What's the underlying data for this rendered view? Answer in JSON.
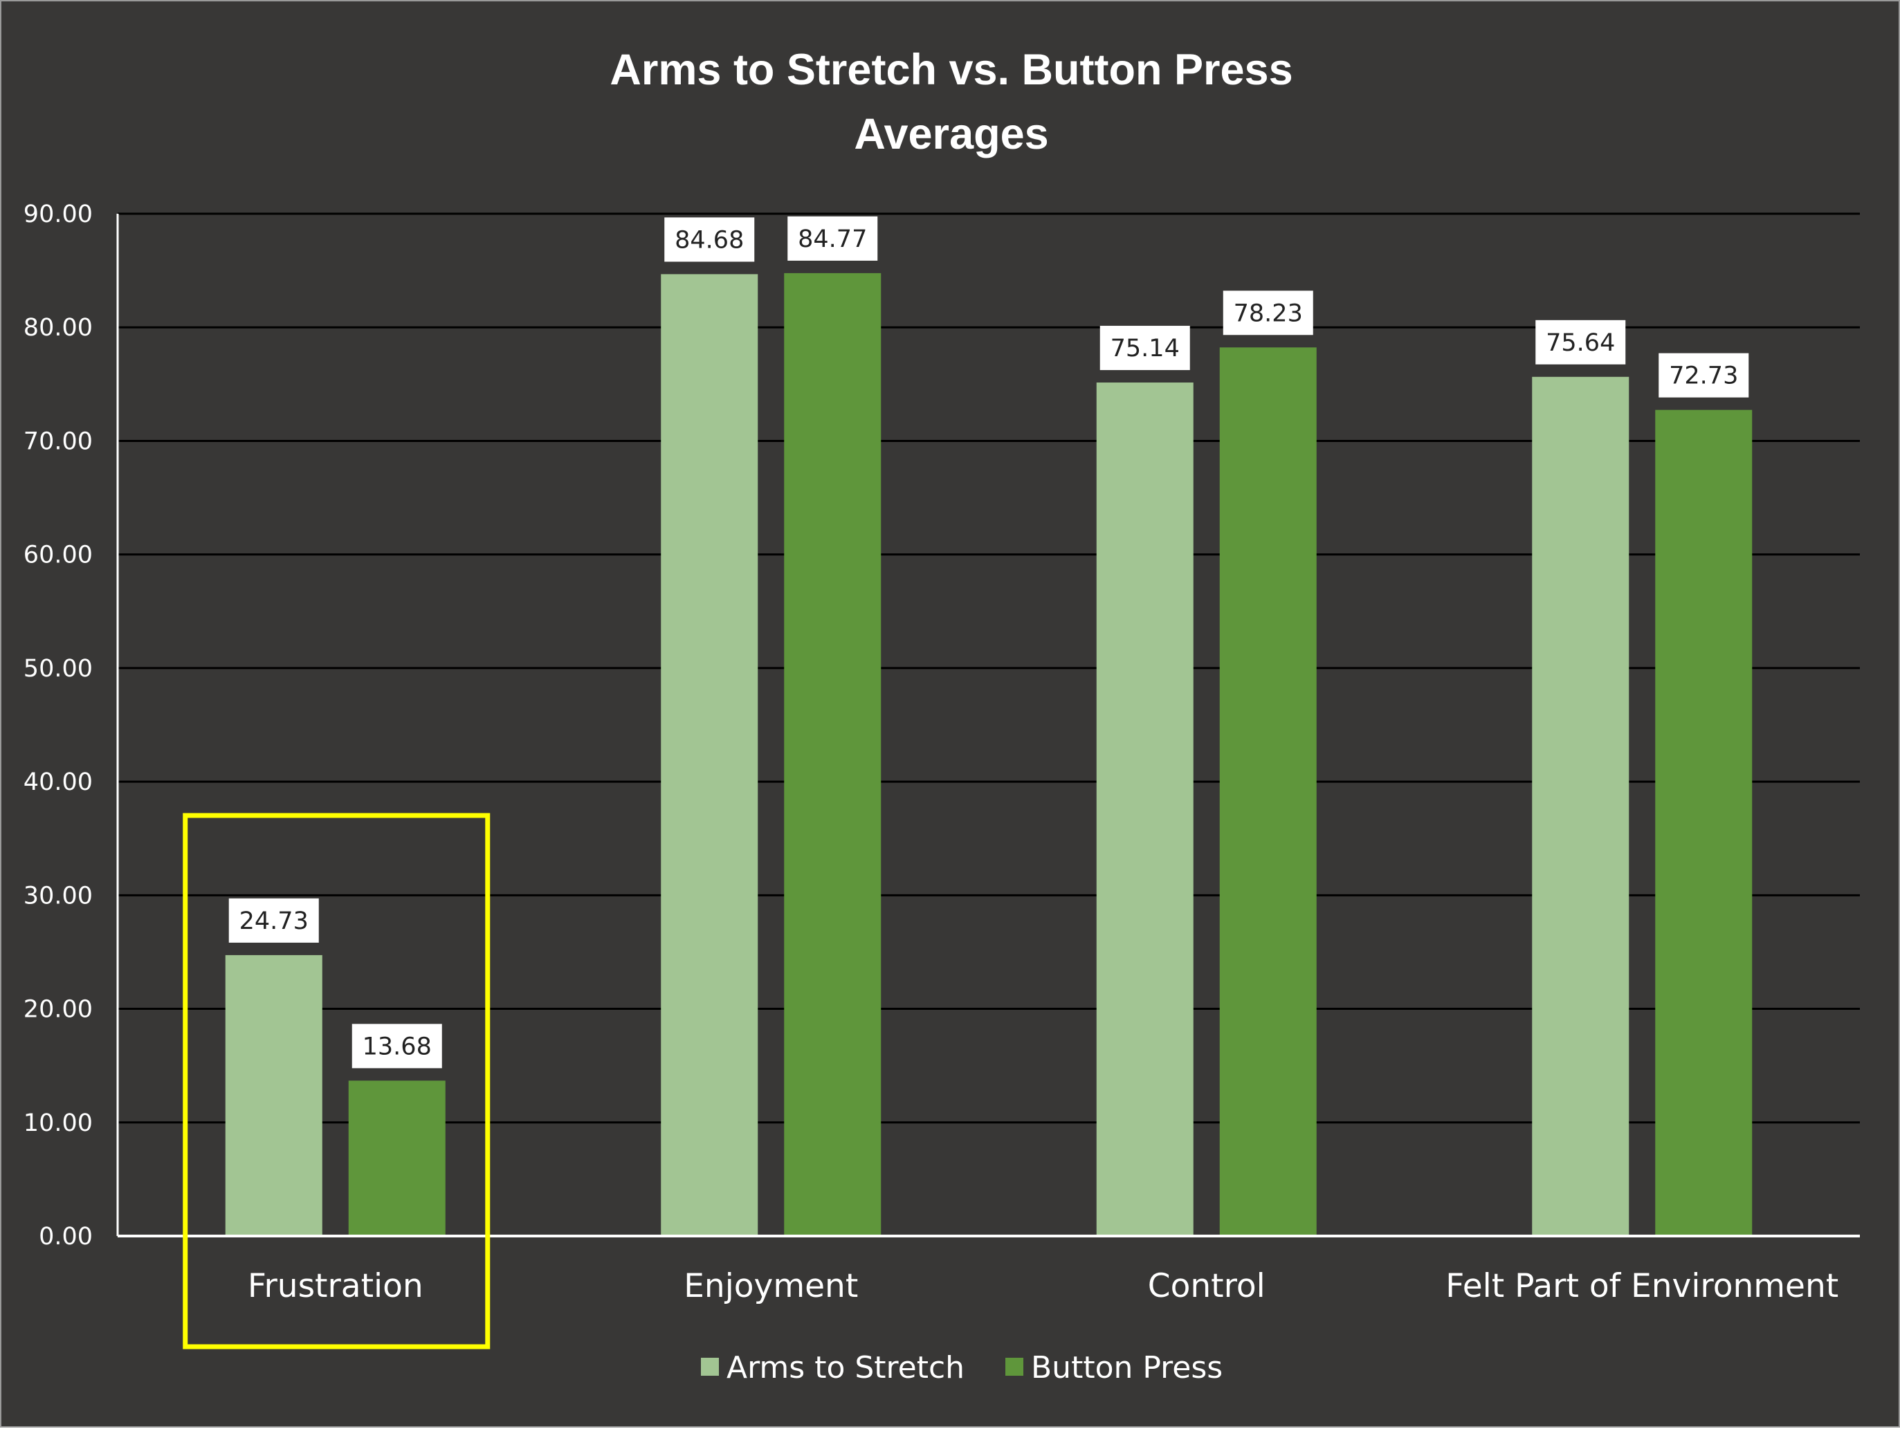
{
  "chart_data": {
    "type": "bar",
    "title_lines": [
      "Arms to Stretch vs. Button Press",
      "Averages"
    ],
    "categories": [
      "Frustration",
      "Enjoyment",
      "Control",
      "Felt Part of Environment"
    ],
    "series": [
      {
        "name": "Arms to Stretch",
        "values": [
          24.73,
          84.68,
          75.14,
          75.64
        ],
        "labels": [
          "24.73",
          "84.68",
          "75.14",
          "75.64"
        ],
        "color": "#a2c593"
      },
      {
        "name": "Button Press",
        "values": [
          13.68,
          84.77,
          78.23,
          72.73
        ],
        "labels": [
          "13.68",
          "84.77",
          "78.23",
          "72.73"
        ],
        "color": "#5f963b"
      }
    ],
    "ylim": [
      0,
      90
    ],
    "yticks": [
      "0.00",
      "10.00",
      "20.00",
      "30.00",
      "40.00",
      "50.00",
      "60.00",
      "70.00",
      "80.00",
      "90.00"
    ],
    "grid": true,
    "legend_position": "bottom",
    "highlight": {
      "category": "Frustration",
      "color": "#ffff00"
    },
    "colors": {
      "background": "#383736",
      "gridline": "#000000",
      "axis": "#ffffff",
      "text": "#ffffff",
      "data_label_box": "#ffffff"
    }
  }
}
